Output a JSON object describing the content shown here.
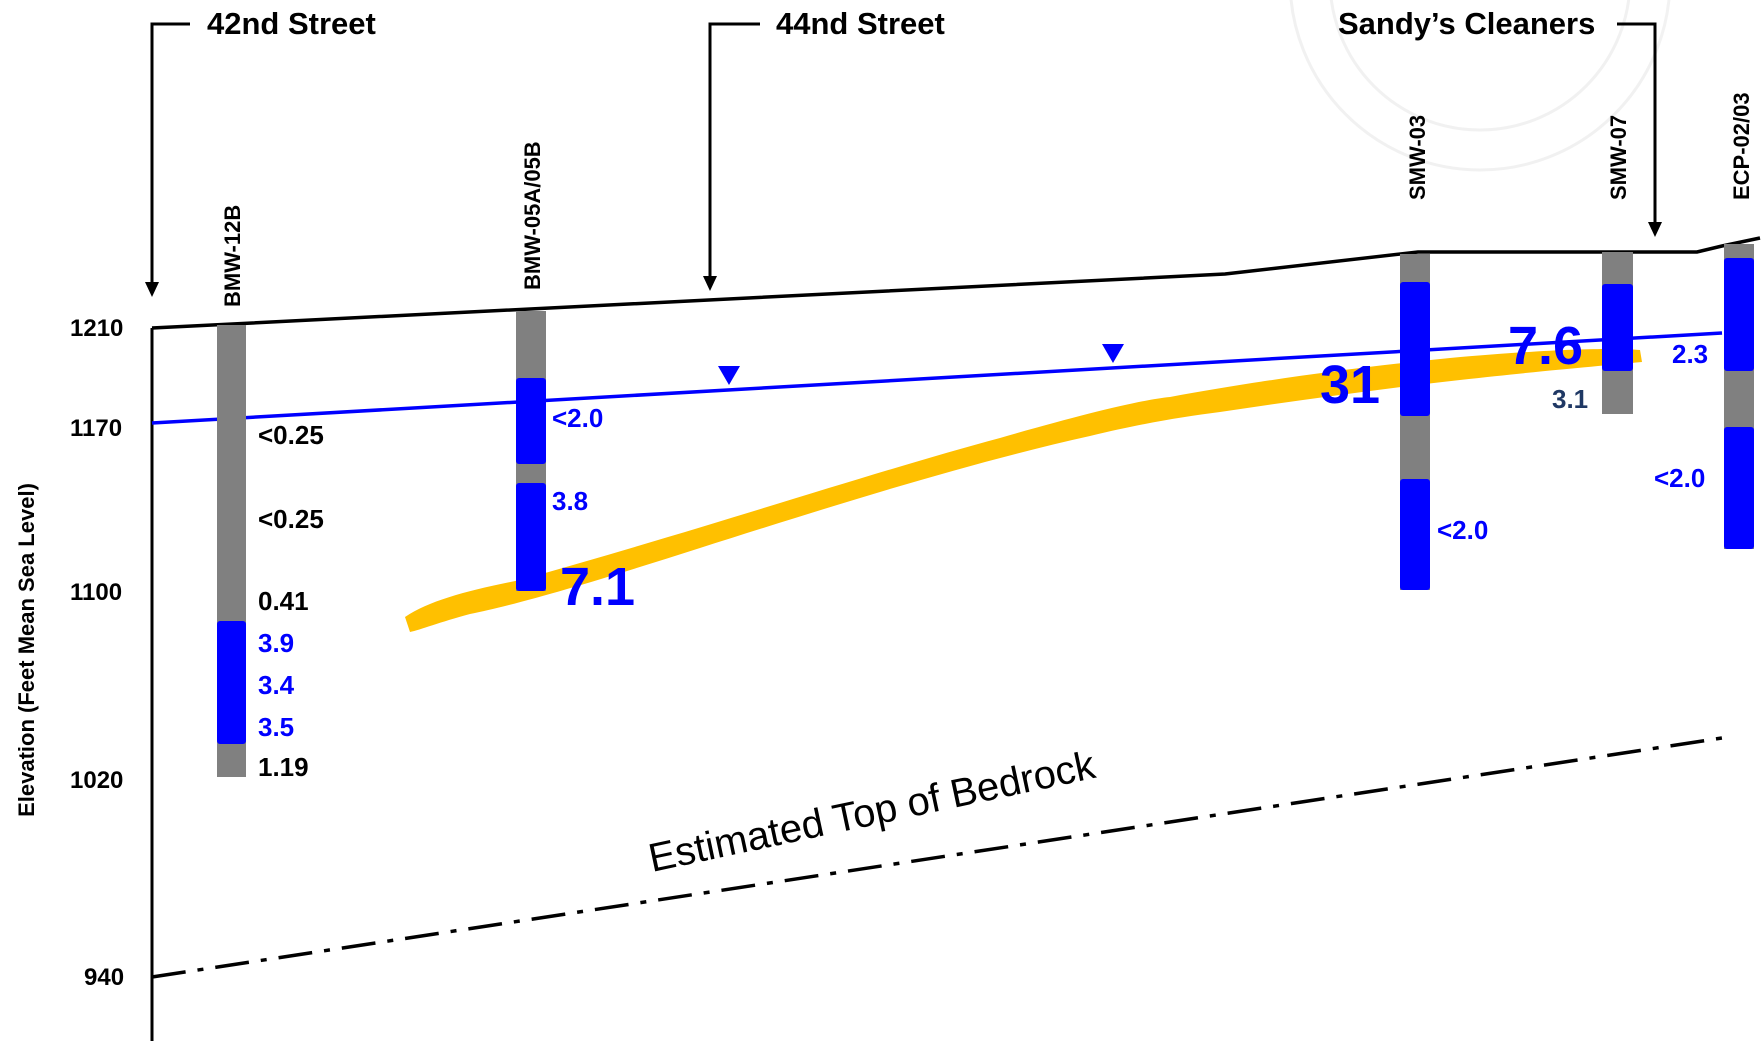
{
  "y_axis": {
    "label": "Elevation (Feet Mean Sea Level)",
    "ticks": [
      "1210",
      "1170",
      "1100",
      "1020",
      "940"
    ]
  },
  "streets": {
    "s42": "42nd Street",
    "s44": "44nd Street",
    "sandys": "Sandy’s Cleaners"
  },
  "wells": {
    "bmw12b": "BMW-12B",
    "bmw05": "BMW-05A/05B",
    "smw03": "SMW-03",
    "smw07": "SMW-07",
    "ecp": "ECP-02/03"
  },
  "values": {
    "v_bmw12b_1": "<0.25",
    "v_bmw12b_2": "<0.25",
    "v_bmw12b_3": "0.41",
    "v_bmw12b_4": "3.9",
    "v_bmw12b_5": "3.4",
    "v_bmw12b_6": "3.5",
    "v_bmw12b_7": "1.19",
    "v_bmw05_1": "<2.0",
    "v_bmw05_2": "3.8",
    "v_bmw05_3": "7.1",
    "v_smw03_1": "31",
    "v_smw03_2": "<2.0",
    "v_smw07_1": "7.6",
    "v_smw07_2": "3.1",
    "v_ecp_1": "2.3",
    "v_ecp_2": "<2.0"
  },
  "bedrock_label": "Estimated Top of Bedrock",
  "colors": {
    "screen": "#0000ff",
    "casing": "#808080",
    "plume": "#ffc000",
    "water_table": "#0000ff",
    "dark_value": "#1f3864"
  }
}
